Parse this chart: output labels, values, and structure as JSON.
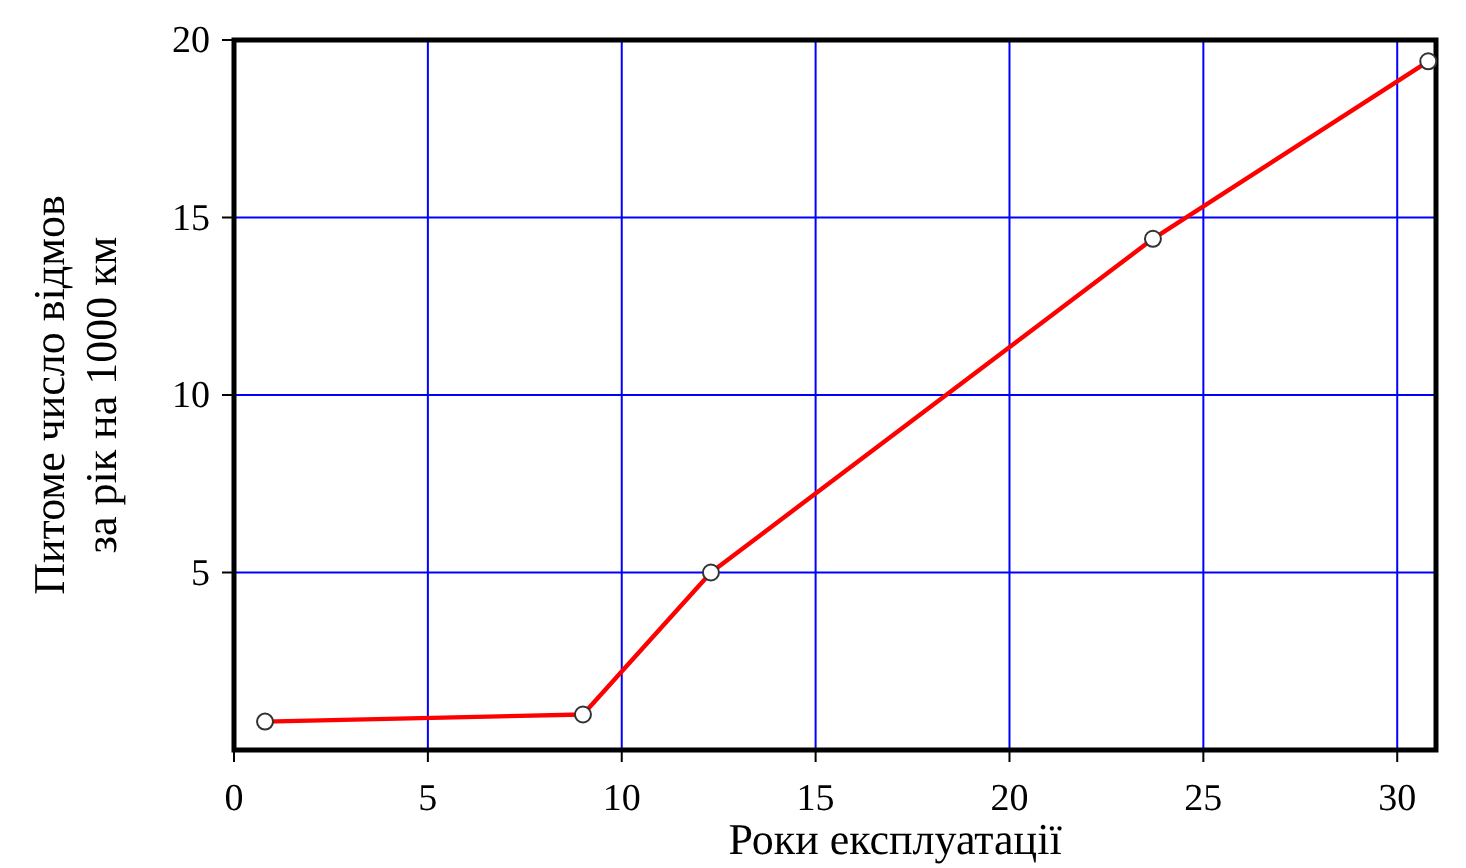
{
  "chart_data": {
    "type": "line",
    "xlabel": "Роки експлуатації",
    "ylabel": "Питоме число відмов\nза рік на 1000 км",
    "x": [
      0.8,
      9.0,
      12.3,
      23.7,
      30.8
    ],
    "series": [
      {
        "color": "#ff0000",
        "values": [
          0.8,
          1.0,
          5.0,
          14.4,
          19.4
        ]
      }
    ],
    "xlim": [
      0,
      31
    ],
    "xticks": [
      0,
      5,
      10,
      15,
      20,
      25,
      30
    ],
    "ylim": [
      0,
      20
    ],
    "yticks": [
      5,
      10,
      15,
      20
    ],
    "grid": true,
    "marker": "circle",
    "line_style": "solid"
  }
}
